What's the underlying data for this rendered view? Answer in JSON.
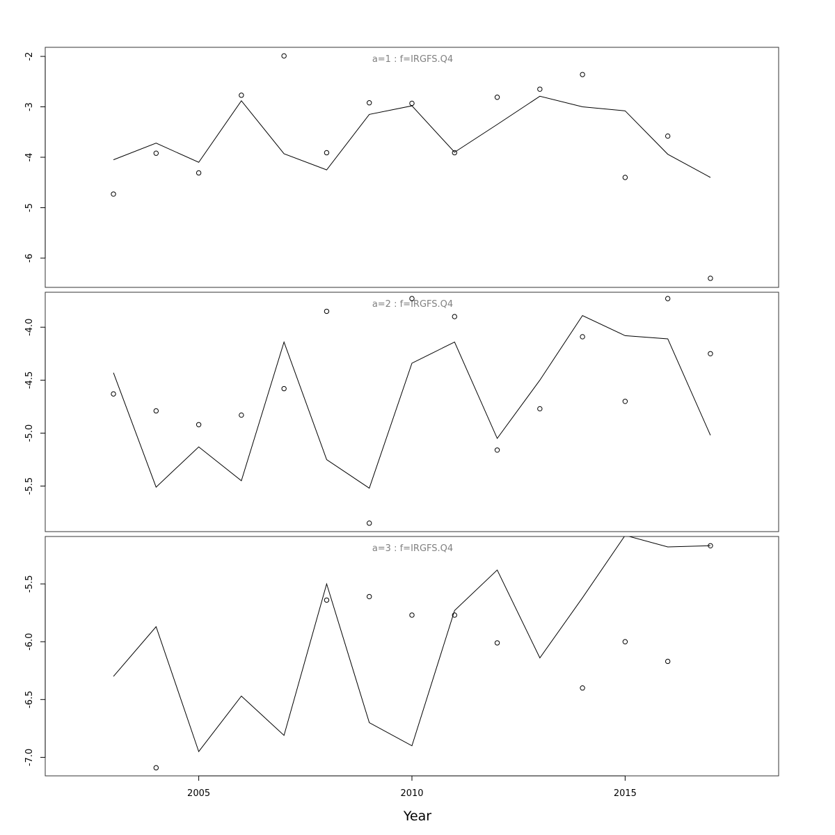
{
  "chart_data": {
    "type": "line",
    "xlabel": "Year",
    "x_ticks": [
      2005,
      2010,
      2015
    ],
    "xlim": [
      2001.4,
      2018.6
    ],
    "grid": false,
    "panels": [
      {
        "title": "a=1  :  f=IRGFS.Q4",
        "ylim": [
          -6.58,
          -1.82
        ],
        "y_ticks": [
          -2,
          -3,
          -4,
          -5,
          -6
        ],
        "y_tick_labels": [
          "-2",
          "-3",
          "-4",
          "-5",
          "-6"
        ],
        "x": [
          2003,
          2004,
          2005,
          2006,
          2007,
          2008,
          2009,
          2010,
          2011,
          2012,
          2013,
          2014,
          2015,
          2016,
          2017
        ],
        "series": [
          {
            "name": "",
            "style": "line",
            "values": [
              -4.05,
              -3.72,
              -4.1,
              -2.88,
              -3.93,
              -4.25,
              -3.15,
              -2.98,
              -3.9,
              -3.35,
              -2.79,
              -3.0,
              -3.08,
              -3.94,
              -4.4
            ]
          },
          {
            "name": "",
            "style": "points",
            "values": [
              -4.73,
              -3.92,
              -4.31,
              -2.77,
              -1.99,
              -3.91,
              -2.92,
              -2.93,
              -3.91,
              -2.81,
              -2.65,
              -2.36,
              -4.4,
              -3.58,
              -6.4
            ]
          }
        ]
      },
      {
        "title": "a=2  :  f=IRGFS.Q4",
        "ylim": [
          -5.93,
          -3.67
        ],
        "y_ticks": [
          -4.0,
          -4.5,
          -5.0,
          -5.5
        ],
        "y_tick_labels": [
          "-4.0",
          "-4.5",
          "-5.0",
          "-5.5"
        ],
        "x": [
          2003,
          2004,
          2005,
          2006,
          2007,
          2008,
          2009,
          2010,
          2011,
          2012,
          2013,
          2014,
          2015,
          2016,
          2017
        ],
        "series": [
          {
            "name": "",
            "style": "line",
            "values": [
              -4.43,
              -5.51,
              -5.13,
              -5.45,
              -4.14,
              -5.25,
              -5.52,
              -4.34,
              -4.14,
              -5.05,
              -4.5,
              -3.89,
              -4.08,
              -4.11,
              -5.02
            ]
          },
          {
            "name": "",
            "style": "points",
            "values": [
              -4.63,
              -4.79,
              -4.92,
              -4.83,
              -4.58,
              -3.85,
              -5.85,
              -3.73,
              -3.9,
              -5.16,
              -4.77,
              -4.09,
              -4.7,
              -3.73,
              -4.25
            ]
          }
        ]
      },
      {
        "title": "a=3  :  f=IRGFS.Q4",
        "ylim": [
          -7.16,
          -5.09
        ],
        "y_ticks": [
          -5.5,
          -6.0,
          -6.5,
          -7.0
        ],
        "y_tick_labels": [
          "-5.5",
          "-6.0",
          "-6.5",
          "-7.0"
        ],
        "x": [
          2003,
          2004,
          2005,
          2006,
          2007,
          2008,
          2009,
          2010,
          2011,
          2012,
          2013,
          2014,
          2015,
          2016,
          2017
        ],
        "series": [
          {
            "name": "",
            "style": "line",
            "values": [
              -6.3,
              -5.87,
              -6.95,
              -6.47,
              -6.81,
              -5.5,
              -6.7,
              -6.9,
              -5.73,
              -5.38,
              -6.14,
              -5.62,
              -5.08,
              -5.18,
              -5.17
            ]
          },
          {
            "name": "",
            "style": "points",
            "values": [
              null,
              -7.09,
              null,
              null,
              null,
              -5.64,
              -5.61,
              -5.77,
              -5.77,
              -6.01,
              null,
              -6.4,
              -6.0,
              -6.17,
              -5.17
            ]
          }
        ]
      }
    ]
  }
}
